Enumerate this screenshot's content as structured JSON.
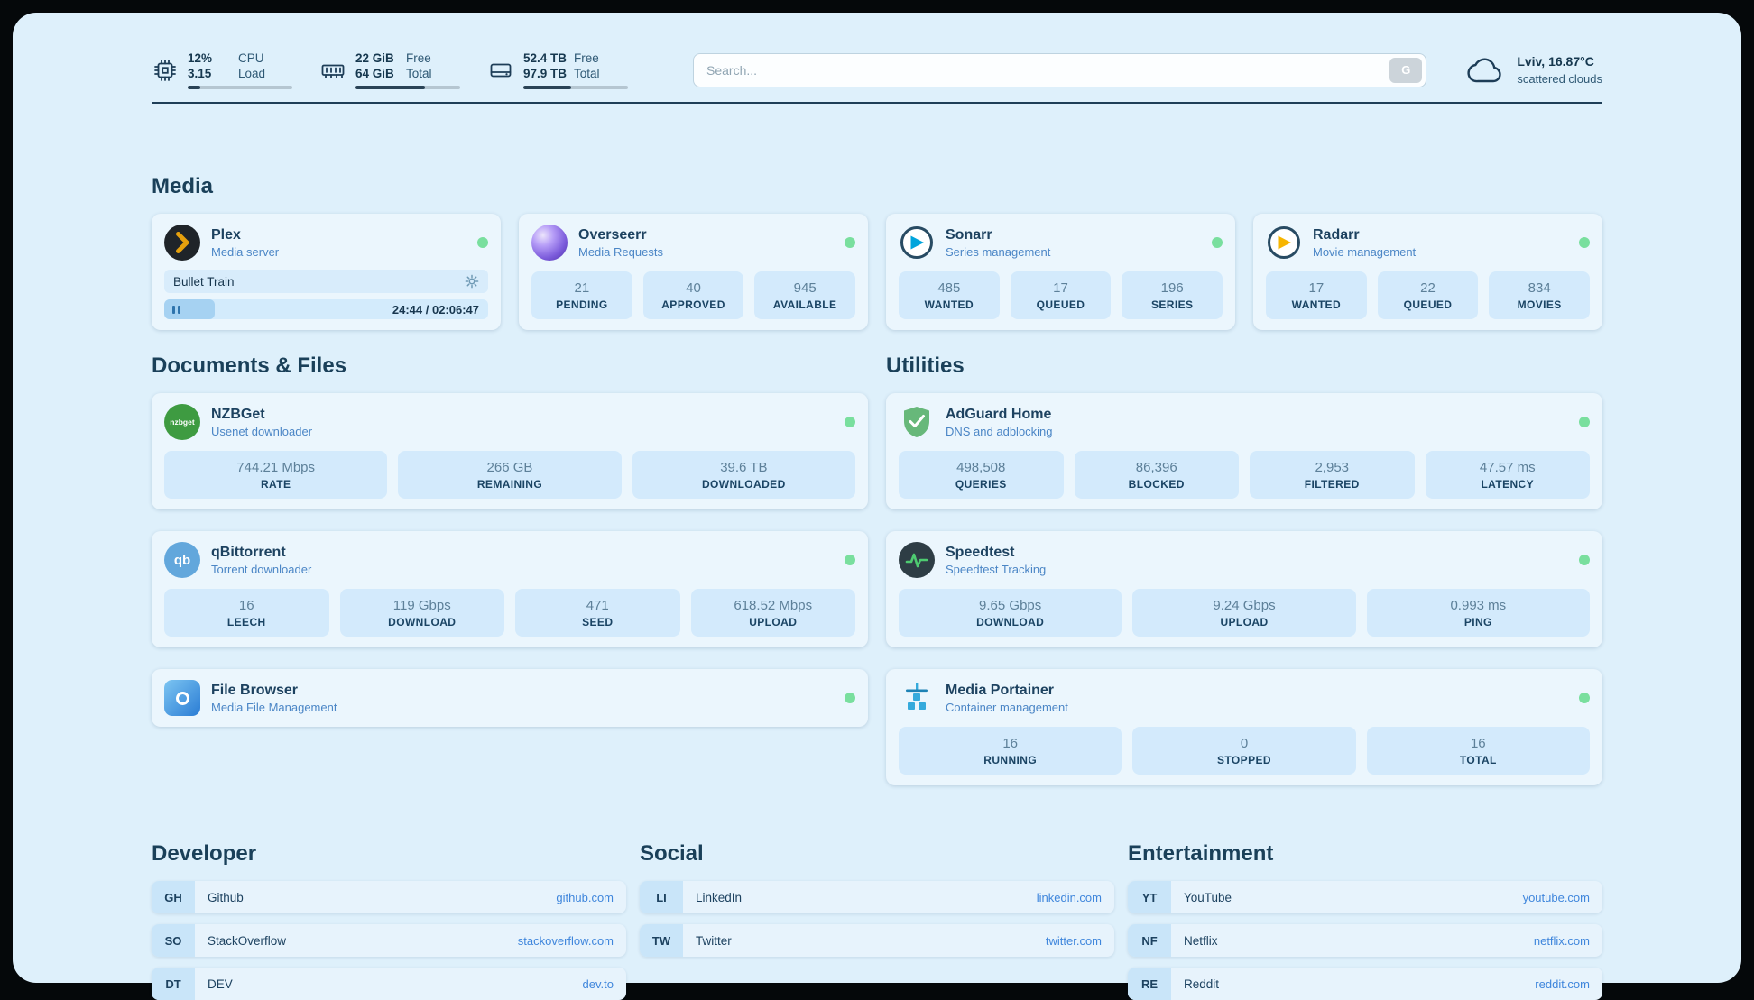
{
  "colors": {
    "page_bg": "#def0fb",
    "status_online": "#79df9e",
    "link": "#3f86dc"
  },
  "topbar": {
    "cpu": {
      "value": "12%",
      "label": "CPU",
      "value2": "3.15",
      "label2": "Load",
      "progress": 12
    },
    "memory": {
      "value": "22 GiB",
      "label": "Free",
      "value2": "64 GiB",
      "label2": "Total",
      "progress": 66
    },
    "disk": {
      "value": "52.4 TB",
      "label": "Free",
      "value2": "97.9 TB",
      "label2": "Total",
      "progress": 46
    },
    "search": {
      "placeholder": "Search...",
      "button_label": "G"
    },
    "weather": {
      "location": "Lviv, 16.87°C",
      "condition": "scattered clouds"
    }
  },
  "sections": {
    "media": {
      "title": "Media"
    },
    "documents": {
      "title": "Documents & Files"
    },
    "utilities": {
      "title": "Utilities"
    },
    "developer": {
      "title": "Developer"
    },
    "social": {
      "title": "Social"
    },
    "entertainment": {
      "title": "Entertainment"
    }
  },
  "services": {
    "plex": {
      "name": "Plex",
      "desc": "Media server",
      "player": {
        "title": "Bullet Train",
        "time": "24:44 / 02:06:47"
      }
    },
    "overseerr": {
      "name": "Overseerr",
      "desc": "Media Requests",
      "stats": [
        {
          "value": "21",
          "label": "PENDING"
        },
        {
          "value": "40",
          "label": "APPROVED"
        },
        {
          "value": "945",
          "label": "AVAILABLE"
        }
      ]
    },
    "sonarr": {
      "name": "Sonarr",
      "desc": "Series management",
      "stats": [
        {
          "value": "485",
          "label": "WANTED"
        },
        {
          "value": "17",
          "label": "QUEUED"
        },
        {
          "value": "196",
          "label": "SERIES"
        }
      ]
    },
    "radarr": {
      "name": "Radarr",
      "desc": "Movie management",
      "stats": [
        {
          "value": "17",
          "label": "WANTED"
        },
        {
          "value": "22",
          "label": "QUEUED"
        },
        {
          "value": "834",
          "label": "MOVIES"
        }
      ]
    },
    "nzbget": {
      "name": "NZBGet",
      "desc": "Usenet downloader",
      "icon_text": "nzbget",
      "stats": [
        {
          "value": "744.21 Mbps",
          "label": "RATE"
        },
        {
          "value": "266 GB",
          "label": "REMAINING"
        },
        {
          "value": "39.6 TB",
          "label": "DOWNLOADED"
        }
      ]
    },
    "qbittorrent": {
      "name": "qBittorrent",
      "desc": "Torrent downloader",
      "icon_text": "qb",
      "stats": [
        {
          "value": "16",
          "label": "LEECH"
        },
        {
          "value": "119 Gbps",
          "label": "DOWNLOAD"
        },
        {
          "value": "471",
          "label": "SEED"
        },
        {
          "value": "618.52 Mbps",
          "label": "UPLOAD"
        }
      ]
    },
    "filebrowser": {
      "name": "File Browser",
      "desc": "Media File Management"
    },
    "adguard": {
      "name": "AdGuard Home",
      "desc": "DNS and adblocking",
      "stats": [
        {
          "value": "498,508",
          "label": "QUERIES"
        },
        {
          "value": "86,396",
          "label": "BLOCKED"
        },
        {
          "value": "2,953",
          "label": "FILTERED"
        },
        {
          "value": "47.57 ms",
          "label": "LATENCY"
        }
      ]
    },
    "speedtest": {
      "name": "Speedtest",
      "desc": "Speedtest Tracking",
      "stats": [
        {
          "value": "9.65 Gbps",
          "label": "DOWNLOAD"
        },
        {
          "value": "9.24 Gbps",
          "label": "UPLOAD"
        },
        {
          "value": "0.993 ms",
          "label": "PING"
        }
      ]
    },
    "portainer": {
      "name": "Media Portainer",
      "desc": "Container management",
      "stats": [
        {
          "value": "16",
          "label": "RUNNING"
        },
        {
          "value": "0",
          "label": "STOPPED"
        },
        {
          "value": "16",
          "label": "TOTAL"
        }
      ]
    }
  },
  "bookmarks": {
    "developer": [
      {
        "abbr": "GH",
        "name": "Github",
        "href": "github.com"
      },
      {
        "abbr": "SO",
        "name": "StackOverflow",
        "href": "stackoverflow.com"
      },
      {
        "abbr": "DT",
        "name": "DEV",
        "href": "dev.to"
      }
    ],
    "social": [
      {
        "abbr": "LI",
        "name": "LinkedIn",
        "href": "linkedin.com"
      },
      {
        "abbr": "TW",
        "name": "Twitter",
        "href": "twitter.com"
      }
    ],
    "entertainment": [
      {
        "abbr": "YT",
        "name": "YouTube",
        "href": "youtube.com"
      },
      {
        "abbr": "NF",
        "name": "Netflix",
        "href": "netflix.com"
      },
      {
        "abbr": "RE",
        "name": "Reddit",
        "href": "reddit.com"
      }
    ]
  }
}
